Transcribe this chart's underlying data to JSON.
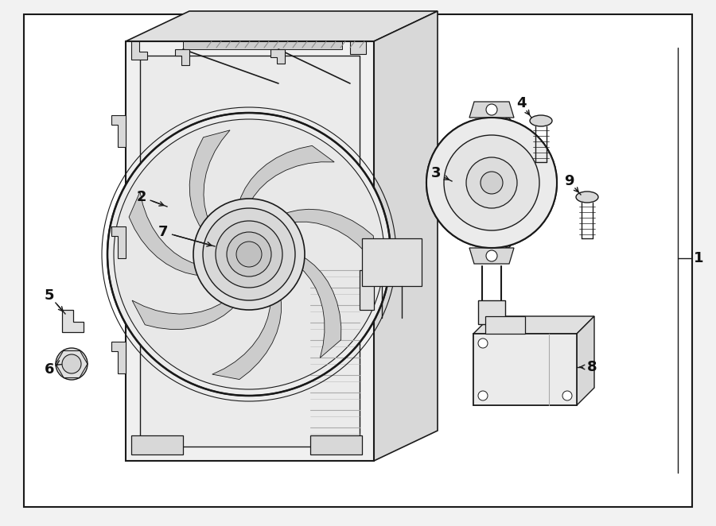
{
  "bg_color": "#f2f2f2",
  "line_color": "#1a1a1a",
  "fill_color": "#ffffff",
  "fig_width": 9.0,
  "fig_height": 6.62,
  "dpi": 100
}
